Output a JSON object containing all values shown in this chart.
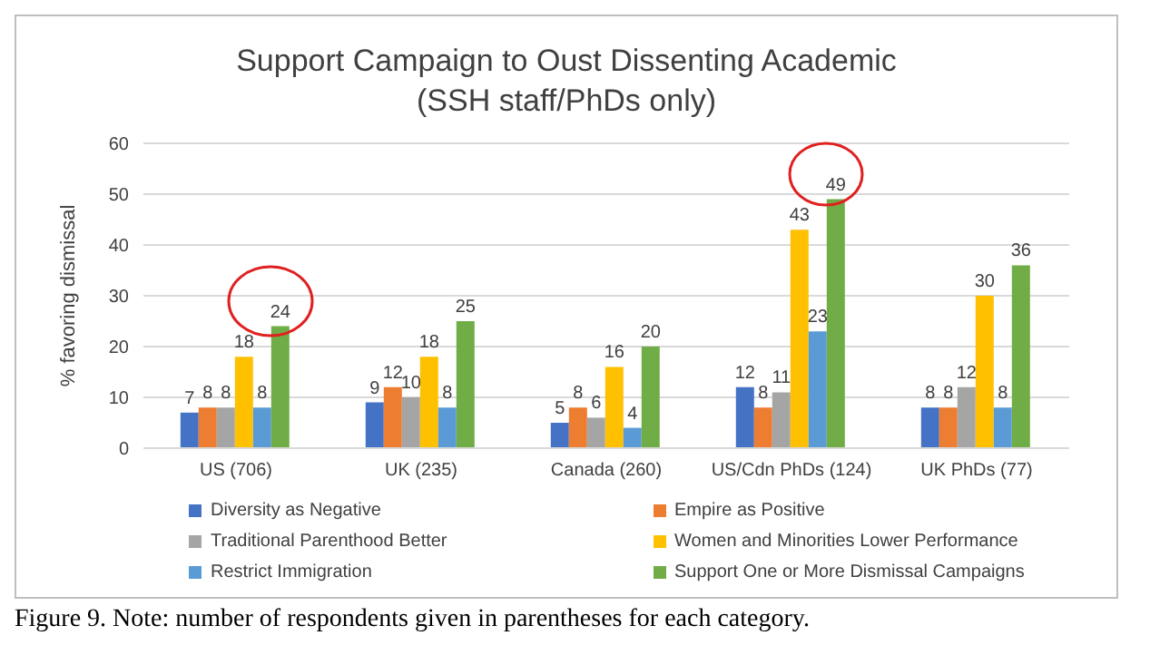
{
  "chart_data": {
    "type": "bar",
    "title": "Support Campaign to Oust Dissenting Academic",
    "subtitle": "(SSH staff/PhDs only)",
    "ylabel": "% favoring dismissal",
    "categories": [
      "US (706)",
      "UK (235)",
      "Canada (260)",
      "US/Cdn PhDs (124)",
      "UK PhDs (77)"
    ],
    "series": [
      {
        "name": "Diversity as Negative",
        "color": "#4472c4",
        "values": [
          7,
          9,
          5,
          12,
          8
        ]
      },
      {
        "name": "Empire as Positive",
        "color": "#ed7d31",
        "values": [
          8,
          12,
          8,
          8,
          8
        ]
      },
      {
        "name": "Traditional Parenthood Better",
        "color": "#a5a5a5",
        "values": [
          8,
          10,
          6,
          11,
          12
        ]
      },
      {
        "name": "Women and Minorities Lower Performance",
        "color": "#ffc000",
        "values": [
          18,
          18,
          16,
          43,
          30
        ]
      },
      {
        "name": "Restrict Immigration",
        "color": "#5b9bd5",
        "values": [
          8,
          8,
          4,
          23,
          8
        ]
      },
      {
        "name": "Support One or More Dismissal Campaigns",
        "color": "#70ad47",
        "values": [
          24,
          25,
          20,
          49,
          36
        ]
      }
    ],
    "ylim": [
      0,
      60
    ],
    "yticks": [
      0,
      10,
      20,
      30,
      40,
      50,
      60
    ],
    "grid": "y",
    "legend": "bottom",
    "data_labels": true,
    "annotations": [
      "Figure 9. Note: number of respondents given in parentheses for each category."
    ]
  }
}
